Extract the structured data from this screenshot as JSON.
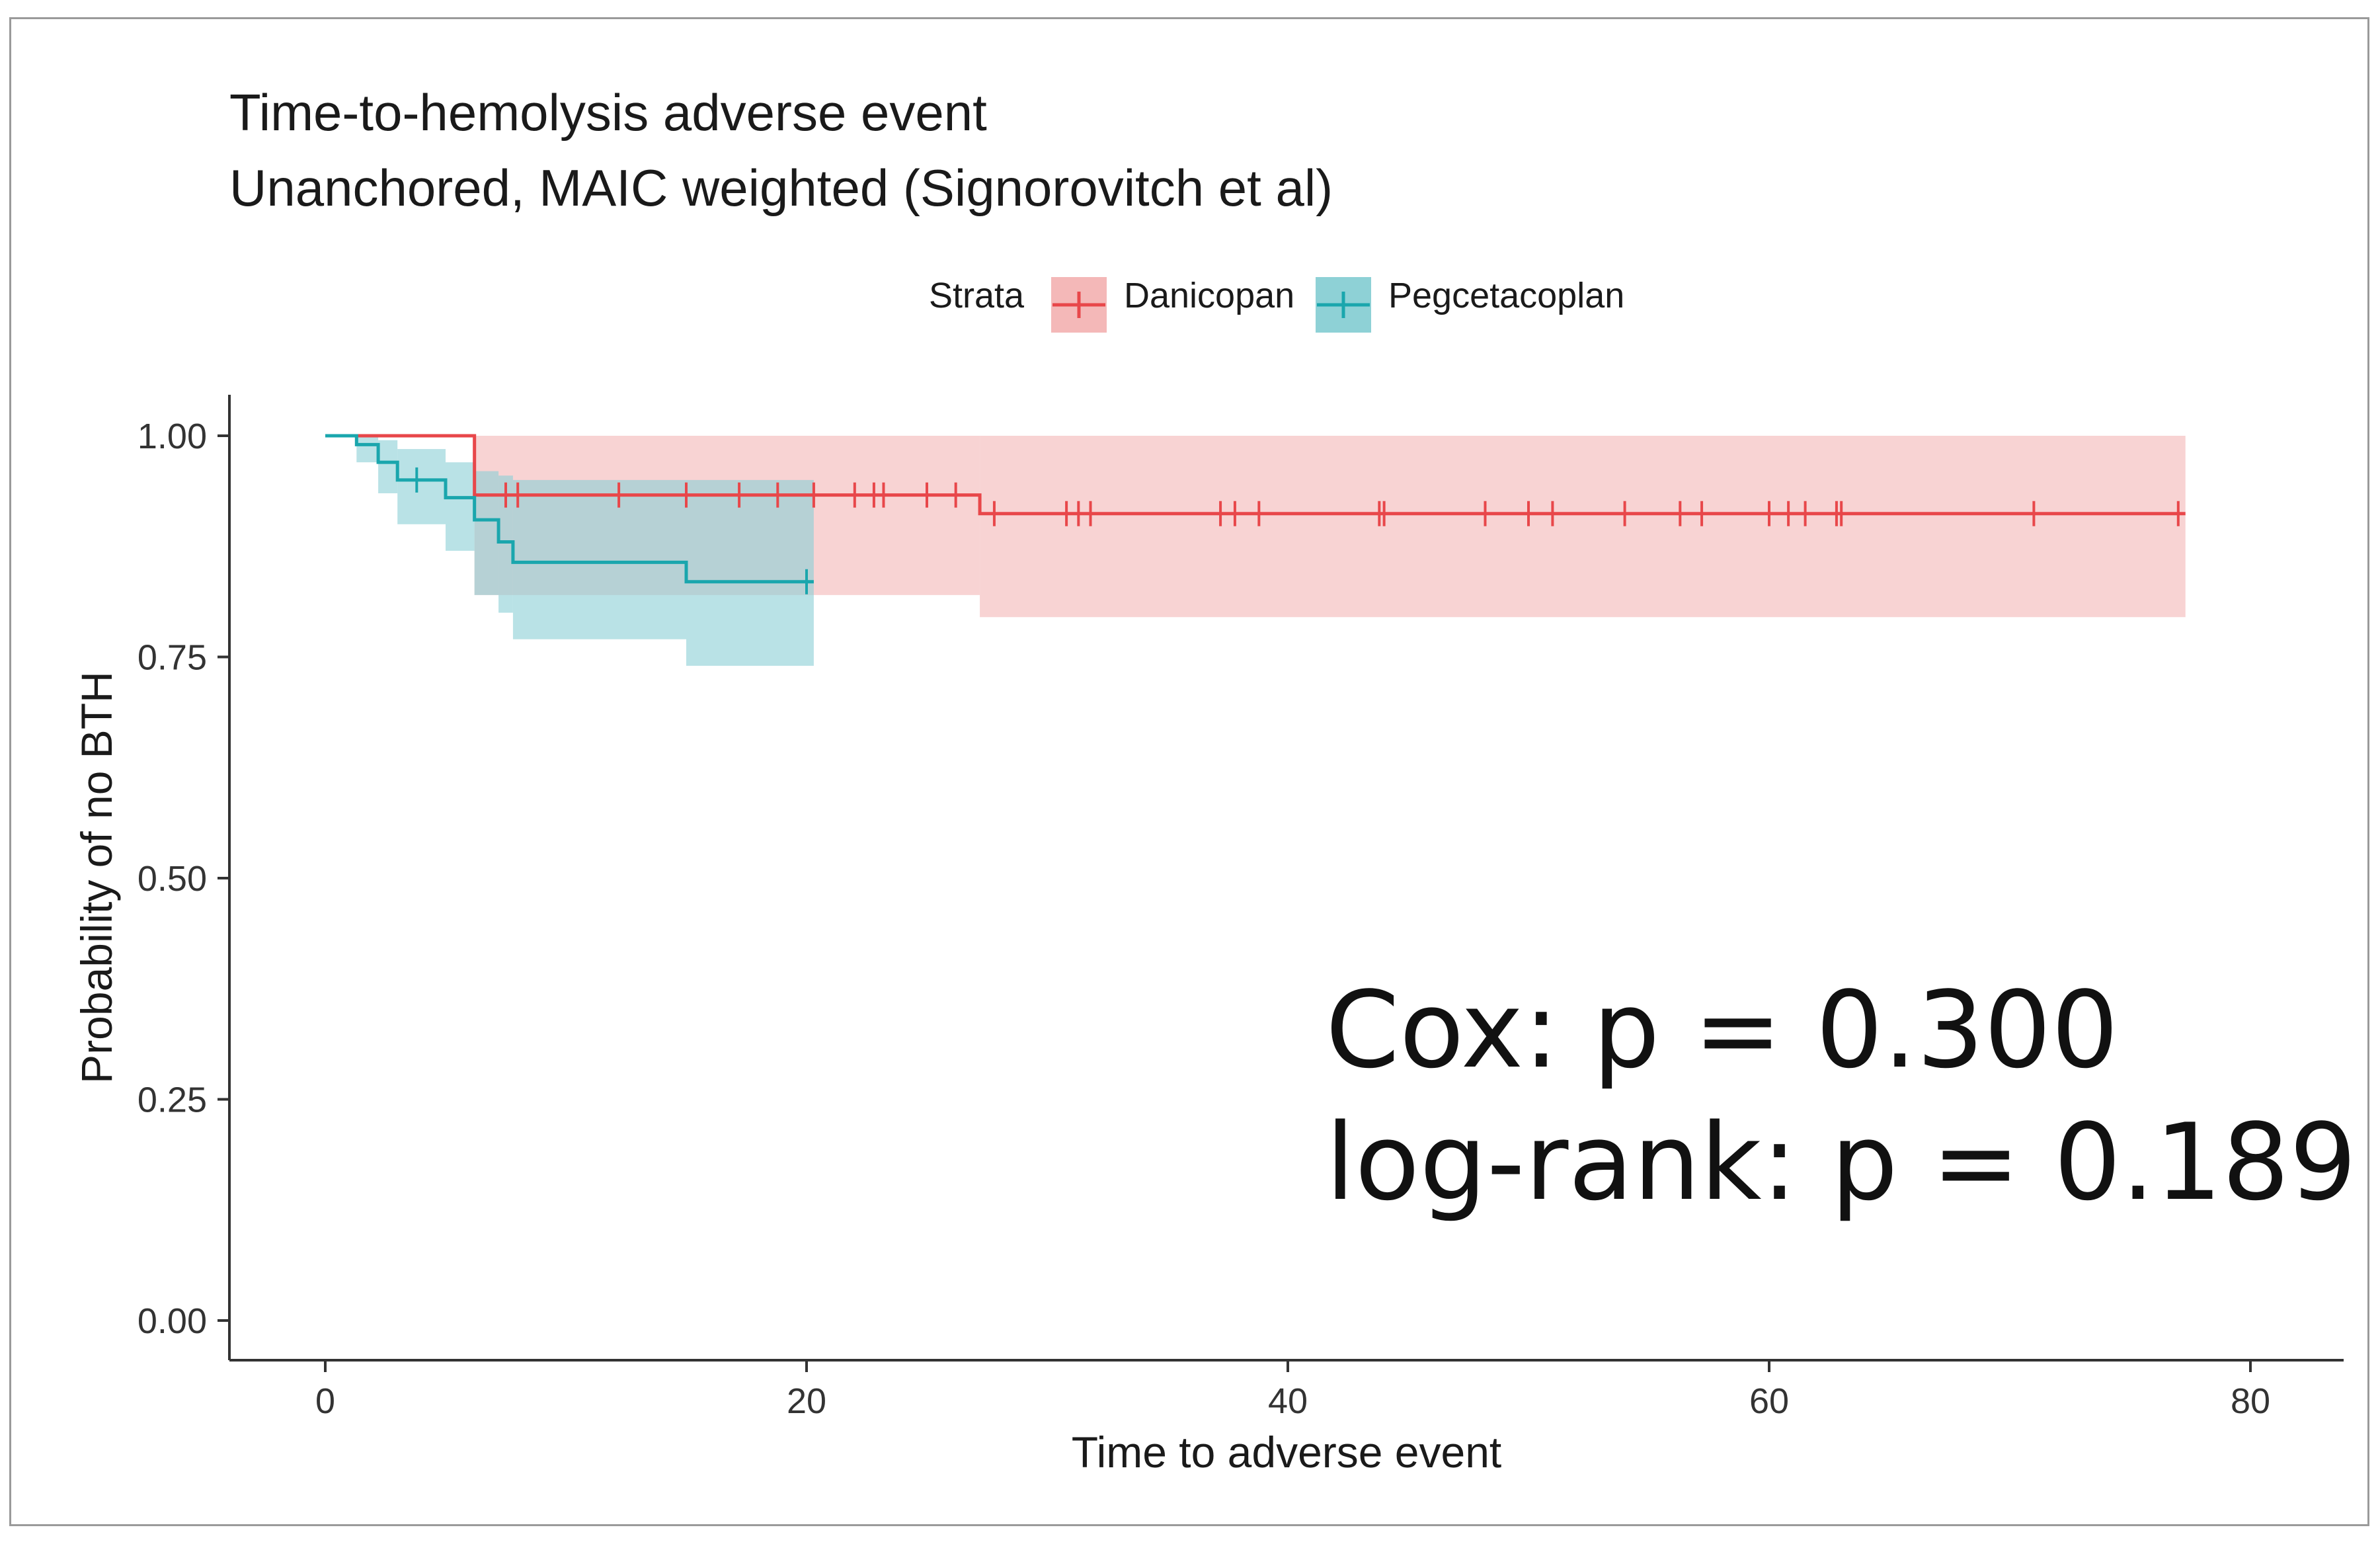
{
  "chart_data": {
    "type": "line",
    "subtype": "kaplan-meier",
    "title": "Time-to-hemolysis adverse event",
    "subtitle": "Unanchored, MAIC weighted (Signorovitch et al)",
    "xlabel": "Time to adverse event",
    "ylabel": "Probability of no BTH",
    "xlim": [
      -2,
      84
    ],
    "ylim": [
      0,
      1
    ],
    "x_ticks": [
      0,
      20,
      40,
      60,
      80
    ],
    "y_ticks": [
      0,
      0.25,
      0.5,
      0.75,
      1.0
    ],
    "x_tick_labels": [
      "0",
      "20",
      "40",
      "60",
      "80"
    ],
    "y_tick_labels": [
      "0.00",
      "0.25",
      "0.50",
      "0.75",
      "1.00"
    ],
    "grid": false,
    "legend": {
      "title": "Strata",
      "position": "top",
      "entries": [
        "Danicopan",
        "Pegcetacoplan"
      ]
    },
    "series": [
      {
        "name": "Danicopan",
        "color": "#e8474a",
        "band_color": "#f4b8b8",
        "steps": [
          [
            0,
            1.0
          ],
          [
            6.2,
            0.933
          ],
          [
            27.2,
            0.912
          ],
          [
            77.3,
            0.912
          ]
        ],
        "ci_steps": [
          [
            0,
            1.0,
            1.0
          ],
          [
            6.2,
            1.0,
            0.82
          ],
          [
            27.2,
            1.0,
            0.795
          ],
          [
            77.3,
            1.0,
            0.795
          ]
        ],
        "censor_times": [
          7.5,
          8,
          12.2,
          15,
          17.2,
          18.8,
          20.3,
          22,
          22.8,
          23.2,
          25,
          26.2,
          27.8,
          30.8,
          31.3,
          31.8,
          37.2,
          37.8,
          38.8,
          43.8,
          44,
          48.2,
          50,
          51,
          54,
          56.3,
          57.2,
          60,
          60.8,
          61.5,
          62.8,
          63,
          71,
          77
        ]
      },
      {
        "name": "Pegcetacoplan",
        "color": "#1aa6ad",
        "band_color": "#8ed1d6",
        "steps": [
          [
            0,
            1.0
          ],
          [
            1.3,
            0.99
          ],
          [
            2.2,
            0.97
          ],
          [
            3,
            0.95
          ],
          [
            5,
            0.93
          ],
          [
            6.2,
            0.905
          ],
          [
            7.2,
            0.88
          ],
          [
            7.8,
            0.857
          ],
          [
            15,
            0.835
          ],
          [
            20.3,
            0.835
          ]
        ],
        "ci_steps": [
          [
            0,
            1.0,
            1.0
          ],
          [
            1.3,
            1.0,
            0.97
          ],
          [
            2.2,
            0.995,
            0.935
          ],
          [
            3,
            0.985,
            0.9
          ],
          [
            5,
            0.97,
            0.87
          ],
          [
            6.2,
            0.96,
            0.82
          ],
          [
            7.2,
            0.955,
            0.8
          ],
          [
            7.8,
            0.95,
            0.77
          ],
          [
            15,
            0.95,
            0.74
          ],
          [
            20.3,
            0.95,
            0.74
          ]
        ],
        "censor_times": [
          3.8,
          20
        ]
      }
    ],
    "annotations": [
      "Cox: p = 0.300",
      "log-rank: p = 0.189"
    ]
  }
}
